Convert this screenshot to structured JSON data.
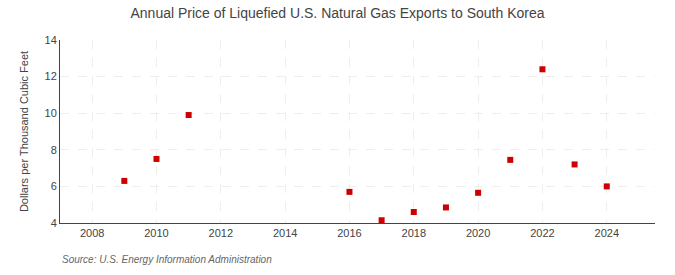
{
  "chart_data": {
    "type": "scatter",
    "title": "Annual Price of Liquefied U.S. Natural Gas Exports to South Korea",
    "ylabel": "Dollars per Thousand Cubic Feet",
    "annotations": [
      "Source: U.S. Energy Information Administration"
    ],
    "x": [
      2009,
      2010,
      2011,
      2016,
      2017,
      2018,
      2019,
      2020,
      2021,
      2022,
      2023,
      2024
    ],
    "values": [
      6.3,
      7.5,
      9.9,
      5.7,
      4.15,
      4.6,
      4.85,
      5.65,
      7.45,
      12.4,
      7.2,
      6.0
    ],
    "color": "#cc0000",
    "marker": "square",
    "xlim": [
      2007,
      2025.5
    ],
    "ylim": [
      4,
      14
    ],
    "xticks": [
      2008,
      2010,
      2012,
      2014,
      2016,
      2018,
      2020,
      2022,
      2024
    ],
    "yticks": [
      4,
      6,
      8,
      10,
      12,
      14
    ],
    "grid": true
  }
}
